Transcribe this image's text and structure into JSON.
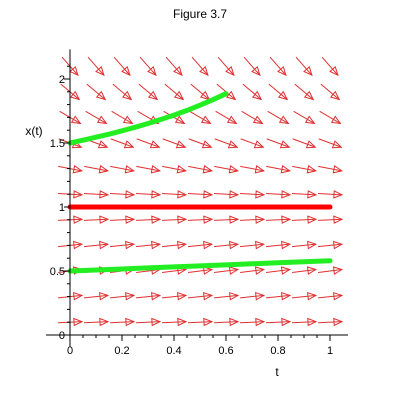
{
  "chart_data": {
    "type": "line",
    "title": "Figure 3.7",
    "xlabel": "t",
    "ylabel": "x(t)",
    "xlim": [
      0,
      1.05
    ],
    "ylim": [
      0,
      2.2
    ],
    "x_ticks": [
      {
        "value": 0,
        "label": "0"
      },
      {
        "value": 0.2,
        "label": "0.2"
      },
      {
        "value": 0.4,
        "label": "0.4"
      },
      {
        "value": 0.6,
        "label": "0.6"
      },
      {
        "value": 0.8,
        "label": "0.8"
      },
      {
        "value": 1,
        "label": "1"
      }
    ],
    "y_ticks": [
      {
        "value": 0,
        "label": "0"
      },
      {
        "value": 0.5,
        "label": "0.5"
      },
      {
        "value": 1,
        "label": "1"
      },
      {
        "value": 1.5,
        "label": "1.5"
      },
      {
        "value": 2,
        "label": "2"
      }
    ],
    "direction_field": {
      "equation_form": "logistic",
      "k": 1.0,
      "t_values": [
        0,
        0.1,
        0.2,
        0.3,
        0.4,
        0.5,
        0.6,
        0.7,
        0.8,
        0.9,
        1.0
      ],
      "x_values": [
        0.1,
        0.3,
        0.5,
        0.7,
        0.9,
        1.1,
        1.3,
        1.5,
        1.7,
        1.9,
        2.1
      ],
      "color": "#e03030"
    },
    "series": [
      {
        "color": "#ff0000",
        "x": [
          0,
          0.1,
          0.2,
          0.3,
          0.4,
          0.5,
          0.6,
          0.7,
          0.8,
          0.9,
          1.0
        ],
        "y": [
          1,
          1,
          1,
          1,
          1,
          1,
          1,
          1,
          1,
          1,
          1
        ]
      },
      {
        "color": "#22ee22",
        "x": [
          0,
          0.05,
          0.1,
          0.15,
          0.2,
          0.25,
          0.3,
          0.35,
          0.4,
          0.45,
          0.5,
          0.55,
          0.6
        ],
        "y": [
          1.5,
          1.522,
          1.545,
          1.569,
          1.595,
          1.623,
          1.652,
          1.684,
          1.718,
          1.755,
          1.795,
          1.838,
          1.885
        ]
      },
      {
        "color": "#22ee22",
        "x": [
          0,
          0.1,
          0.2,
          0.3,
          0.4,
          0.5,
          0.6,
          0.7,
          0.8,
          0.9,
          1.0
        ],
        "y": [
          0.5,
          0.508,
          0.516,
          0.524,
          0.532,
          0.54,
          0.548,
          0.556,
          0.564,
          0.572,
          0.58
        ]
      }
    ],
    "grid": false,
    "legend": "none"
  }
}
